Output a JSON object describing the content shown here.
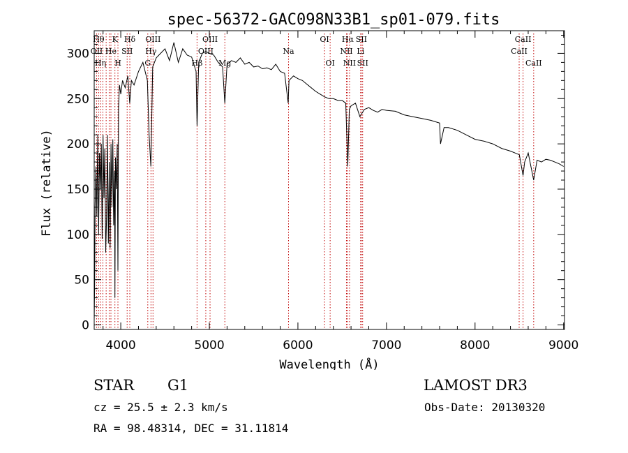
{
  "chart_data": {
    "type": "line",
    "title": "spec-56372-GAC098N33B1_sp01-079.fits",
    "xlabel": "Wavelength (Å)",
    "ylabel": "Flux (relative)",
    "xlim": [
      3700,
      9010
    ],
    "ylim": [
      -5,
      325
    ],
    "xticks": [
      4000,
      5000,
      6000,
      7000,
      8000,
      9000
    ],
    "yticks": [
      0,
      50,
      100,
      150,
      200,
      250,
      300
    ],
    "grid": false,
    "series": [
      {
        "name": "flux",
        "x": [
          3700,
          3705,
          3710,
          3720,
          3730,
          3740,
          3750,
          3760,
          3770,
          3780,
          3790,
          3800,
          3810,
          3820,
          3830,
          3840,
          3850,
          3860,
          3870,
          3880,
          3890,
          3900,
          3910,
          3920,
          3930,
          3934,
          3940,
          3950,
          3960,
          3968,
          3975,
          3985,
          4000,
          4020,
          4050,
          4080,
          4101,
          4120,
          4150,
          4200,
          4250,
          4300,
          4320,
          4340,
          4360,
          4400,
          4450,
          4500,
          4550,
          4600,
          4650,
          4700,
          4750,
          4800,
          4850,
          4861,
          4880,
          4920,
          4960,
          5000,
          5050,
          5100,
          5150,
          5175,
          5200,
          5250,
          5300,
          5350,
          5400,
          5450,
          5500,
          5550,
          5600,
          5650,
          5700,
          5750,
          5800,
          5850,
          5890,
          5900,
          5950,
          6000,
          6050,
          6100,
          6150,
          6200,
          6250,
          6300,
          6350,
          6400,
          6450,
          6500,
          6540,
          6563,
          6580,
          6600,
          6650,
          6700,
          6750,
          6800,
          6850,
          6900,
          6950,
          7000,
          7100,
          7200,
          7300,
          7400,
          7500,
          7600,
          7610,
          7650,
          7700,
          7800,
          7900,
          8000,
          8100,
          8200,
          8300,
          8400,
          8450,
          8500,
          8542,
          8560,
          8600,
          8662,
          8700,
          8750,
          8800,
          8850,
          8900,
          8950,
          9000
        ],
        "values": [
          5,
          40,
          130,
          175,
          120,
          210,
          100,
          190,
          150,
          200,
          95,
          210,
          140,
          195,
          80,
          120,
          210,
          90,
          180,
          85,
          200,
          130,
          205,
          110,
          170,
          30,
          185,
          150,
          200,
          60,
          240,
          265,
          255,
          270,
          262,
          275,
          245,
          270,
          265,
          280,
          290,
          270,
          210,
          175,
          285,
          295,
          300,
          305,
          292,
          312,
          290,
          305,
          298,
          296,
          280,
          220,
          290,
          300,
          302,
          300,
          298,
          290,
          285,
          245,
          288,
          292,
          290,
          295,
          288,
          290,
          285,
          286,
          283,
          284,
          282,
          288,
          280,
          278,
          245,
          270,
          275,
          272,
          270,
          266,
          262,
          258,
          255,
          252,
          250,
          250,
          248,
          248,
          245,
          175,
          238,
          242,
          245,
          230,
          238,
          240,
          237,
          235,
          238,
          237,
          236,
          232,
          230,
          228,
          226,
          223,
          200,
          218,
          218,
          215,
          210,
          205,
          203,
          200,
          195,
          192,
          190,
          188,
          165,
          180,
          190,
          160,
          182,
          180,
          183,
          182,
          180,
          178,
          175
        ]
      }
    ],
    "lines": [
      {
        "x": 3727,
        "label": "OII",
        "row": 1
      },
      {
        "x": 3750,
        "label": "Hθ",
        "row": 0
      },
      {
        "x": 3771,
        "label": "Hη",
        "row": 2
      },
      {
        "x": 3798,
        "label": "",
        "row": 0
      },
      {
        "x": 3835,
        "label": "",
        "row": 1
      },
      {
        "x": 3869,
        "label": "",
        "row": 2
      },
      {
        "x": 3889,
        "label": "He",
        "row": 1
      },
      {
        "x": 3934,
        "label": "K",
        "row": 0
      },
      {
        "x": 3968,
        "label": "H",
        "row": 2
      },
      {
        "x": 4072,
        "label": "SII",
        "row": 1
      },
      {
        "x": 4102,
        "label": "Hδ",
        "row": 0
      },
      {
        "x": 4305,
        "label": "G",
        "row": 2
      },
      {
        "x": 4341,
        "label": "Hγ",
        "row": 1
      },
      {
        "x": 4364,
        "label": "OIII",
        "row": 0
      },
      {
        "x": 4861,
        "label": "Hβ",
        "row": 2
      },
      {
        "x": 4960,
        "label": "OIII",
        "row": 1
      },
      {
        "x": 5008,
        "label": "OIII",
        "row": 0
      },
      {
        "x": 5175,
        "label": "Mg",
        "row": 2
      },
      {
        "x": 5894,
        "label": "Na",
        "row": 1
      },
      {
        "x": 6300,
        "label": "OI",
        "row": 0
      },
      {
        "x": 6364,
        "label": "OI",
        "row": 2
      },
      {
        "x": 6548,
        "label": "NII",
        "row": 1
      },
      {
        "x": 6563,
        "label": "Hα",
        "row": 0
      },
      {
        "x": 6583,
        "label": "NII",
        "row": 2
      },
      {
        "x": 6708,
        "label": "Li",
        "row": 1
      },
      {
        "x": 6716,
        "label": "SII",
        "row": 0
      },
      {
        "x": 6731,
        "label": "SII",
        "row": 2
      },
      {
        "x": 8498,
        "label": "CaII",
        "row": 1
      },
      {
        "x": 8542,
        "label": "CaII",
        "row": 0
      },
      {
        "x": 8662,
        "label": "CaII",
        "row": 2
      }
    ]
  },
  "info": {
    "object_class": "STAR",
    "subclass": "G1",
    "survey": "LAMOST DR3",
    "redshift": "cz = 25.5 ± 2.3 km/s",
    "obs_date": "Obs-Date: 20130320",
    "coords": "RA =  98.48314, DEC =  31.11814"
  }
}
